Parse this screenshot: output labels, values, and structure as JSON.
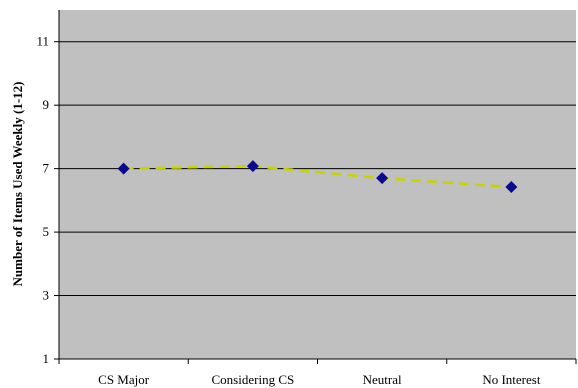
{
  "chart_data": {
    "type": "line",
    "title": "",
    "xlabel": "",
    "ylabel": "Number of Items Used Weekly (1-12)",
    "categories": [
      "CS Major",
      "Considering CS",
      "Neutral",
      "No Interest"
    ],
    "series": [
      {
        "values": [
          7.0,
          7.08,
          6.7,
          6.42
        ]
      }
    ],
    "yticks": [
      "1",
      "3",
      "5",
      "7",
      "9",
      "11"
    ],
    "ylim": [
      1,
      12
    ],
    "grid": true,
    "legend": "none",
    "colors": {
      "plot_background": "#c0c0c0",
      "gridline": "#000000",
      "trend_line": "#c8d400",
      "marker": "#0a0a8c"
    }
  }
}
